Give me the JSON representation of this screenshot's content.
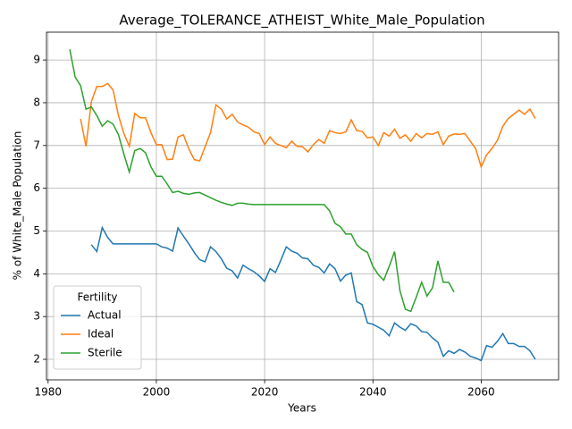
{
  "chart_data": {
    "type": "line",
    "title": "Average_TOLERANCE_ATHEIST_White_Male_Population",
    "x_label": "Years",
    "y_label": "% of White_Male Population",
    "legend_title": "Fertility",
    "legend_position": "lower left",
    "grid": true,
    "x": [
      1984,
      1985,
      1986,
      1987,
      1988,
      1989,
      1990,
      1991,
      1992,
      1993,
      1994,
      1995,
      1996,
      1997,
      1998,
      1999,
      2000,
      2001,
      2002,
      2003,
      2004,
      2005,
      2006,
      2007,
      2008,
      2009,
      2010,
      2011,
      2012,
      2013,
      2014,
      2015,
      2016,
      2017,
      2018,
      2019,
      2020,
      2021,
      2022,
      2023,
      2024,
      2025,
      2026,
      2027,
      2028,
      2029,
      2030,
      2031,
      2032,
      2033,
      2034,
      2035,
      2036,
      2037,
      2038,
      2039,
      2040,
      2041,
      2042,
      2043,
      2044,
      2045,
      2046,
      2047,
      2048,
      2049,
      2050,
      2051,
      2052,
      2053,
      2054,
      2055,
      2056,
      2057,
      2058,
      2059,
      2060,
      2061,
      2062,
      2063,
      2064,
      2065,
      2066,
      2067,
      2068,
      2069,
      2070
    ],
    "series": [
      {
        "name": "Actual",
        "color": "#1f77b4",
        "values": [
          null,
          null,
          null,
          null,
          4.68,
          4.52,
          5.08,
          4.85,
          4.7,
          4.7,
          4.7,
          4.7,
          4.7,
          4.7,
          4.7,
          4.7,
          4.7,
          4.63,
          4.6,
          4.53,
          5.07,
          4.88,
          4.7,
          4.5,
          4.33,
          4.28,
          4.63,
          4.52,
          4.35,
          4.13,
          4.07,
          3.9,
          4.2,
          4.12,
          4.05,
          3.95,
          3.82,
          4.12,
          4.03,
          4.32,
          4.63,
          4.53,
          4.48,
          4.37,
          4.35,
          4.2,
          4.15,
          4.02,
          4.23,
          4.12,
          3.83,
          3.97,
          4.02,
          3.35,
          3.28,
          2.85,
          2.82,
          2.75,
          2.68,
          2.55,
          2.85,
          2.75,
          2.68,
          2.83,
          2.78,
          2.65,
          2.63,
          2.5,
          2.4,
          2.07,
          2.2,
          2.14,
          2.23,
          2.17,
          2.07,
          2.03,
          1.97,
          2.32,
          2.28,
          2.42,
          2.6,
          2.37,
          2.37,
          2.3,
          2.3,
          2.2,
          2.0
        ]
      },
      {
        "name": "Ideal",
        "color": "#ff7f0e",
        "values": [
          null,
          null,
          7.62,
          6.98,
          8.03,
          8.38,
          8.38,
          8.45,
          8.3,
          7.7,
          7.28,
          6.98,
          7.75,
          7.65,
          7.65,
          7.3,
          7.02,
          7.02,
          6.67,
          6.68,
          7.2,
          7.25,
          6.92,
          6.67,
          6.64,
          6.97,
          7.3,
          7.95,
          7.85,
          7.62,
          7.73,
          7.55,
          7.48,
          7.43,
          7.32,
          7.28,
          7.02,
          7.2,
          7.05,
          7.0,
          6.95,
          7.1,
          6.98,
          6.97,
          6.85,
          7.02,
          7.14,
          7.05,
          7.35,
          7.3,
          7.28,
          7.32,
          7.6,
          7.35,
          7.33,
          7.18,
          7.2,
          7.0,
          7.3,
          7.22,
          7.38,
          7.17,
          7.25,
          7.1,
          7.28,
          7.18,
          7.28,
          7.26,
          7.32,
          7.02,
          7.22,
          7.27,
          7.26,
          7.28,
          7.1,
          6.92,
          6.5,
          6.78,
          6.93,
          7.12,
          7.45,
          7.63,
          7.73,
          7.83,
          7.73,
          7.85,
          7.63
        ]
      },
      {
        "name": "Sterile",
        "color": "#2ca02c",
        "values": [
          9.25,
          8.6,
          8.4,
          7.85,
          7.9,
          7.7,
          7.45,
          7.58,
          7.5,
          7.25,
          6.8,
          6.38,
          6.88,
          6.93,
          6.83,
          6.5,
          6.28,
          6.28,
          6.1,
          5.9,
          5.93,
          5.88,
          5.86,
          5.89,
          5.9,
          5.84,
          5.78,
          5.72,
          5.67,
          5.63,
          5.6,
          5.65,
          5.65,
          5.63,
          5.62,
          5.62,
          5.62,
          5.62,
          5.62,
          5.62,
          5.62,
          5.62,
          5.62,
          5.62,
          5.62,
          5.62,
          5.62,
          5.62,
          5.47,
          5.18,
          5.1,
          4.93,
          4.93,
          4.68,
          4.57,
          4.5,
          4.17,
          3.98,
          3.85,
          4.17,
          4.52,
          3.6,
          3.17,
          3.12,
          3.45,
          3.8,
          3.48,
          3.67,
          4.3,
          3.8,
          3.8,
          3.57,
          null,
          null,
          null,
          null,
          null,
          null,
          null,
          null,
          null,
          null,
          null,
          null,
          null,
          null,
          null
        ]
      }
    ],
    "xlim": [
      1979.7,
      2074.3
    ],
    "xticks": [
      1980,
      2000,
      2020,
      2040,
      2060
    ],
    "ylim": [
      1.52,
      9.65
    ],
    "yticks": [
      2,
      3,
      4,
      5,
      6,
      7,
      8,
      9
    ]
  }
}
